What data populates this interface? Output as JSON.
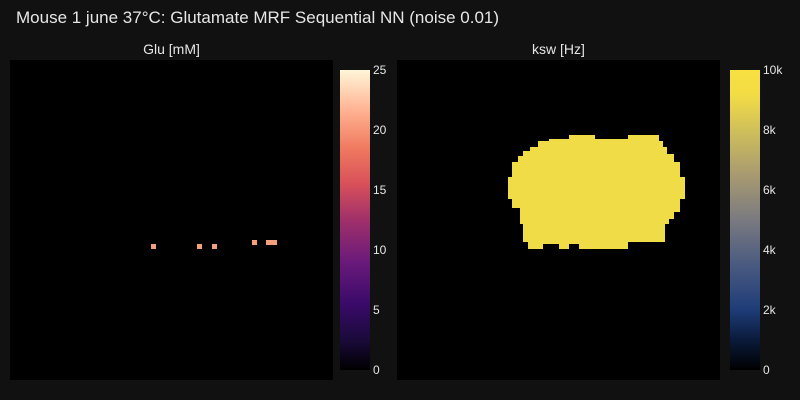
{
  "title": "Mouse 1 june 37°C: Glutamate MRF Sequential NN (noise 0.01)",
  "panels": {
    "glu": {
      "label": "Glu [mM]",
      "colorbar_ticks": [
        "25",
        "20",
        "15",
        "10",
        "5",
        "0"
      ],
      "range": [
        0,
        25
      ],
      "spot_color": "#f5a07a"
    },
    "ksw": {
      "label": "ksw [Hz]",
      "colorbar_ticks": [
        "10k",
        "8k",
        "6k",
        "4k",
        "2k",
        "0"
      ],
      "range": [
        0,
        10000
      ],
      "mask_color": "#f0dc46"
    }
  }
}
